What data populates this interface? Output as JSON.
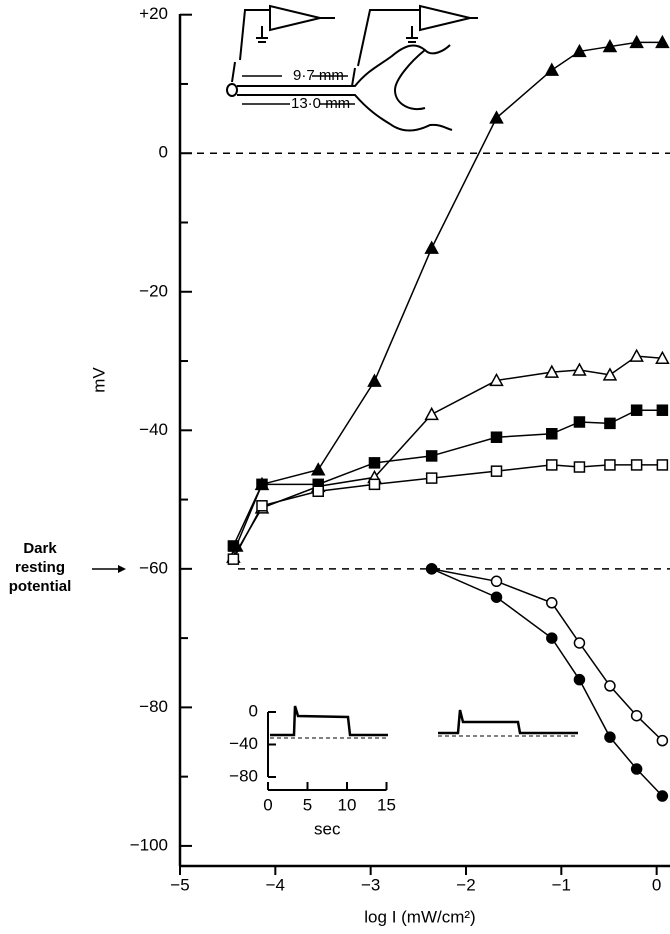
{
  "chart_data": {
    "type": "line",
    "xlabel": "log I (mW/cm²)",
    "ylabel": "mV",
    "xlim": [
      -5,
      0.14
    ],
    "ylim": [
      -102.9,
      20.1
    ],
    "xticks": [
      {
        "value": -5,
        "label": "−5"
      },
      {
        "value": -4,
        "label": "−4"
      },
      {
        "value": -3,
        "label": "−3"
      },
      {
        "value": -2,
        "label": "−2"
      },
      {
        "value": -1,
        "label": "−1"
      },
      0
    ],
    "yticks": [
      {
        "value": 20,
        "label": "+20"
      },
      0,
      {
        "value": -20,
        "label": "−20"
      },
      {
        "value": -40,
        "label": "−40"
      },
      {
        "value": -60,
        "label": "−60"
      },
      {
        "value": -80,
        "label": "−80"
      },
      {
        "value": -100,
        "label": "−100"
      }
    ],
    "yminorticks": [
      10,
      -10,
      -30,
      -50,
      -70,
      -90
    ],
    "hlines": [
      0,
      -60
    ],
    "dark_label": [
      "Dark",
      "resting",
      "potential"
    ],
    "series": [
      {
        "marker": "triangle",
        "filled": true,
        "color": "#000",
        "x": [
          -4.41,
          -4.14,
          -3.55,
          -2.96,
          -2.36,
          -1.68,
          -1.1,
          -0.81,
          -0.49,
          -0.21,
          0.06
        ],
        "values": [
          -56.7,
          -47.8,
          -45.7,
          -32.9,
          -13.7,
          5.1,
          12.0,
          14.7,
          15.4,
          16.0,
          16.0
        ]
      },
      {
        "marker": "triangle",
        "filled": false,
        "color": "#000",
        "x": [
          -4.44,
          -4.14,
          -3.55,
          -2.96,
          -2.36,
          -1.68,
          -1.1,
          -0.81,
          -0.49,
          -0.21,
          0.06
        ],
        "values": [
          -58.3,
          -51.2,
          -48.1,
          -46.8,
          -37.7,
          -32.8,
          -31.6,
          -31.3,
          -32.0,
          -29.3,
          -29.6
        ]
      },
      {
        "marker": "square",
        "filled": true,
        "color": "#000",
        "x": [
          -4.44,
          -4.14,
          -3.55,
          -2.96,
          -2.36,
          -1.68,
          -1.1,
          -0.81,
          -0.49,
          -0.21,
          0.06
        ],
        "values": [
          -56.7,
          -47.8,
          -47.8,
          -44.7,
          -43.7,
          -41.0,
          -40.5,
          -38.8,
          -39.0,
          -37.1,
          -37.1
        ]
      },
      {
        "marker": "square",
        "filled": false,
        "color": "#000",
        "x": [
          -4.44,
          -4.14,
          -3.55,
          -2.96,
          -2.36,
          -1.68,
          -1.1,
          -0.81,
          -0.49,
          -0.21,
          0.06
        ],
        "values": [
          -58.6,
          -50.9,
          -48.8,
          -47.8,
          -46.9,
          -45.9,
          -45.0,
          -45.3,
          -45.0,
          -45.0,
          -45.0
        ]
      },
      {
        "marker": "circle",
        "filled": false,
        "color": "#000",
        "x": [
          -2.36,
          -1.68,
          -1.1,
          -0.81,
          -0.49,
          -0.21,
          0.06
        ],
        "values": [
          -60.0,
          -61.8,
          -64.9,
          -70.7,
          -76.9,
          -81.2,
          -84.8
        ]
      },
      {
        "marker": "circle",
        "filled": true,
        "color": "#000",
        "x": [
          -2.36,
          -1.68,
          -1.1,
          -0.81,
          -0.49,
          -0.21,
          0.06
        ],
        "values": [
          -60.0,
          -64.1,
          -70.0,
          -76.0,
          -84.3,
          -88.9,
          -92.8
        ]
      }
    ],
    "inset": {
      "yticks": [
        0,
        {
          "value": -40,
          "label": "−40"
        },
        {
          "value": -80,
          "label": "−80"
        }
      ],
      "xticks": [
        0,
        5,
        10,
        15
      ],
      "xlabel": "sec"
    },
    "diagram": {
      "label_short": "9·7 mm",
      "label_long": "13·0 mm"
    }
  }
}
